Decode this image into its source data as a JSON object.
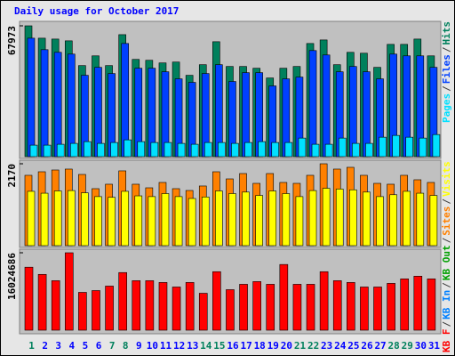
{
  "chart_data": [
    {
      "type": "bar",
      "title": "Daily usage for October 2017",
      "title_color": "#0000ff",
      "ylim": [
        0,
        67973
      ],
      "yticks": [
        67973
      ],
      "legend_separator": "/",
      "series": [
        {
          "name": "Hits",
          "color": "#00805c",
          "values": [
            67973,
            61546,
            61087,
            60168,
            47308,
            52360,
            47308,
            63383,
            50523,
            50063,
            48686,
            49145,
            42255,
            47767,
            59709,
            46849,
            46849,
            45930,
            40878,
            45930,
            46849,
            58790,
            60627,
            47767,
            54197,
            53737,
            46389,
            58330,
            58330,
            61087,
            52360
          ]
        },
        {
          "name": "Files",
          "color": "#0040ff",
          "values": [
            61546,
            55572,
            54197,
            53278,
            42255,
            46389,
            43174,
            58790,
            45930,
            45930,
            44093,
            40418,
            38581,
            43174,
            47767,
            39040,
            43633,
            43633,
            36744,
            40418,
            41337,
            55116,
            52819,
            44093,
            46849,
            44093,
            40418,
            53278,
            52360,
            52360,
            46389
          ]
        },
        {
          "name": "Pages",
          "color": "#00e0ff",
          "values": [
            5971,
            5971,
            6430,
            6890,
            7808,
            6890,
            7349,
            8727,
            7808,
            7349,
            7349,
            6890,
            6430,
            7349,
            7349,
            6890,
            7349,
            7808,
            7349,
            7349,
            9645,
            6430,
            6430,
            9645,
            6890,
            6890,
            10105,
            11023,
            10105,
            9645,
            11482
          ]
        }
      ]
    },
    {
      "type": "bar",
      "ylim": [
        0,
        2170
      ],
      "yticks": [
        2170
      ],
      "series": [
        {
          "name": "Sites",
          "color": "#ff8000",
          "values": [
            1864,
            1958,
            2005,
            2029,
            1887,
            1510,
            1628,
            1982,
            1628,
            1533,
            1675,
            1510,
            1462,
            1581,
            1958,
            1769,
            1911,
            1651,
            1911,
            1675,
            1651,
            1864,
            2170,
            2029,
            2076,
            1864,
            1651,
            1628,
            1864,
            1746,
            1675
          ]
        },
        {
          "name": "Visits",
          "color": "#ffff00",
          "values": [
            1440,
            1390,
            1450,
            1460,
            1400,
            1300,
            1280,
            1440,
            1320,
            1300,
            1380,
            1300,
            1250,
            1290,
            1450,
            1380,
            1420,
            1330,
            1450,
            1380,
            1300,
            1460,
            1520,
            1500,
            1480,
            1420,
            1300,
            1350,
            1440,
            1390,
            1330
          ]
        }
      ]
    },
    {
      "type": "bar",
      "ylim": [
        0,
        16024686
      ],
      "yticks": [
        16024686
      ],
      "categories": [
        "1",
        "2",
        "3",
        "4",
        "5",
        "6",
        "7",
        "8",
        "9",
        "10",
        "11",
        "12",
        "13",
        "14",
        "15",
        "16",
        "17",
        "18",
        "19",
        "20",
        "21",
        "22",
        "23",
        "24",
        "25",
        "26",
        "27",
        "28",
        "29",
        "30",
        "31"
      ],
      "category_colors": [
        "#00805c",
        "#0000ff",
        "#0000ff",
        "#0000ff",
        "#0000ff",
        "#0000ff",
        "#00805c",
        "#00805c",
        "#0000ff",
        "#0000ff",
        "#0000ff",
        "#0000ff",
        "#0000ff",
        "#00805c",
        "#00805c",
        "#0000ff",
        "#0000ff",
        "#0000ff",
        "#0000ff",
        "#0000ff",
        "#00805c",
        "#00805c",
        "#0000ff",
        "#0000ff",
        "#0000ff",
        "#0000ff",
        "#0000ff",
        "#00805c",
        "#00805c",
        "#0000ff",
        "#0000ff"
      ],
      "series": [
        {
          "name": "KB F",
          "color": "#ff0000",
          "values": [
            13040000,
            11550000,
            10250000,
            16024686,
            7830000,
            8200000,
            9130000,
            11930000,
            10250000,
            10250000,
            9880000,
            8940000,
            9880000,
            7640000,
            12110000,
            8390000,
            9500000,
            10060000,
            9500000,
            13600000,
            9500000,
            9500000,
            12110000,
            10250000,
            9880000,
            8940000,
            8940000,
            9690000,
            10620000,
            11180000,
            10620000
          ]
        }
      ],
      "legend_extra": [
        {
          "name": "KB In",
          "color": "#0080ff"
        },
        {
          "name": "KB Out",
          "color": "#00a000"
        }
      ]
    }
  ]
}
